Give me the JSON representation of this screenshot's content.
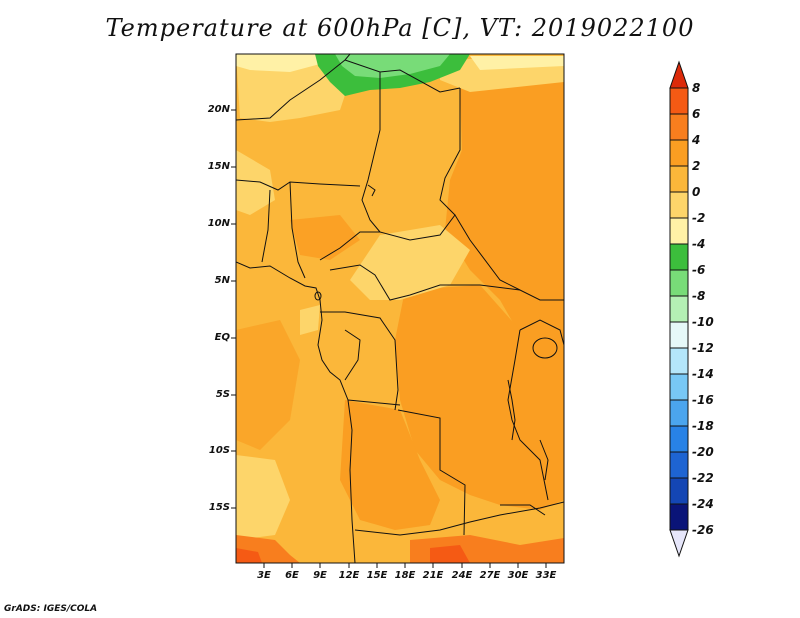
{
  "title": "Temperature at 600hPa [C], VT: 2019022100",
  "credit": "GrADS: IGES/COLA",
  "lat_labels": [
    "20N",
    "15N",
    "10N",
    "5N",
    "EQ",
    "5S",
    "10S",
    "15S"
  ],
  "lon_labels": [
    "3E",
    "6E",
    "9E",
    "12E",
    "15E",
    "18E",
    "21E",
    "24E",
    "27E",
    "30E",
    "33E"
  ],
  "colorbar": {
    "labels": [
      "8",
      "6",
      "4",
      "2",
      "0",
      "-2",
      "-4",
      "-6",
      "-8",
      "-10",
      "-12",
      "-14",
      "-16",
      "-18",
      "-20",
      "-22",
      "-24",
      "-26"
    ],
    "colors": [
      "#dc2a0a",
      "#f55a14",
      "#f87e1e",
      "#fa9e22",
      "#fbb73a",
      "#fdd56a",
      "#fff1a6",
      "#3cbe3c",
      "#78dc78",
      "#b4f0b4",
      "#e6f8f8",
      "#b4e6fa",
      "#78c8f5",
      "#4ba5ee",
      "#2882e6",
      "#1e64d2",
      "#1446b4",
      "#0a1478",
      "#e6e6fa"
    ]
  }
}
